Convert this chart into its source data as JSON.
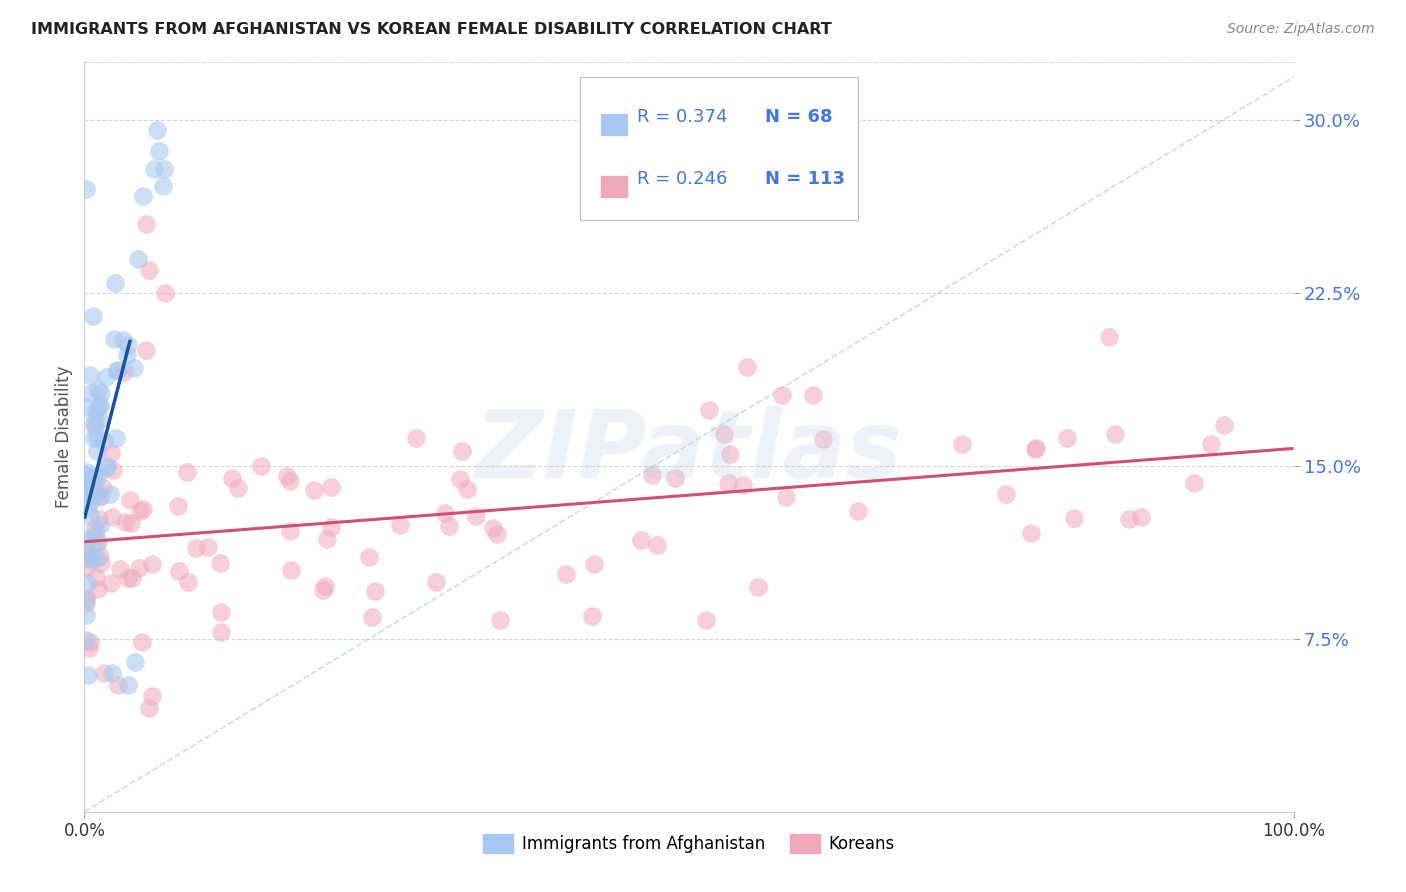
{
  "title": "IMMIGRANTS FROM AFGHANISTAN VS KOREAN FEMALE DISABILITY CORRELATION CHART",
  "source": "Source: ZipAtlas.com",
  "ylabel": "Female Disability",
  "ytick_labels": [
    "7.5%",
    "15.0%",
    "22.5%",
    "30.0%"
  ],
  "ytick_values": [
    0.075,
    0.15,
    0.225,
    0.3
  ],
  "legend_r1": "R = 0.374",
  "legend_n1": "N = 68",
  "legend_r2": "R = 0.246",
  "legend_n2": "N = 113",
  "color_afghanistan": "#A8C8F0",
  "color_korean": "#F0A8B8",
  "color_afghanistan_line": "#1A50A0",
  "color_korean_line": "#D05070",
  "color_diagonal": "#A8C4E0",
  "legend_label1": "Immigrants from Afghanistan",
  "legend_label2": "Koreans",
  "xlim": [
    0.0,
    1.0
  ],
  "ylim": [
    0.0,
    0.325
  ],
  "background_color": "#FFFFFF",
  "grid_color": "#CCCCCC",
  "title_color": "#222222",
  "source_color": "#888888",
  "axis_label_color": "#555555",
  "tick_color": "#4477DD",
  "text_blue": "#4477DD"
}
